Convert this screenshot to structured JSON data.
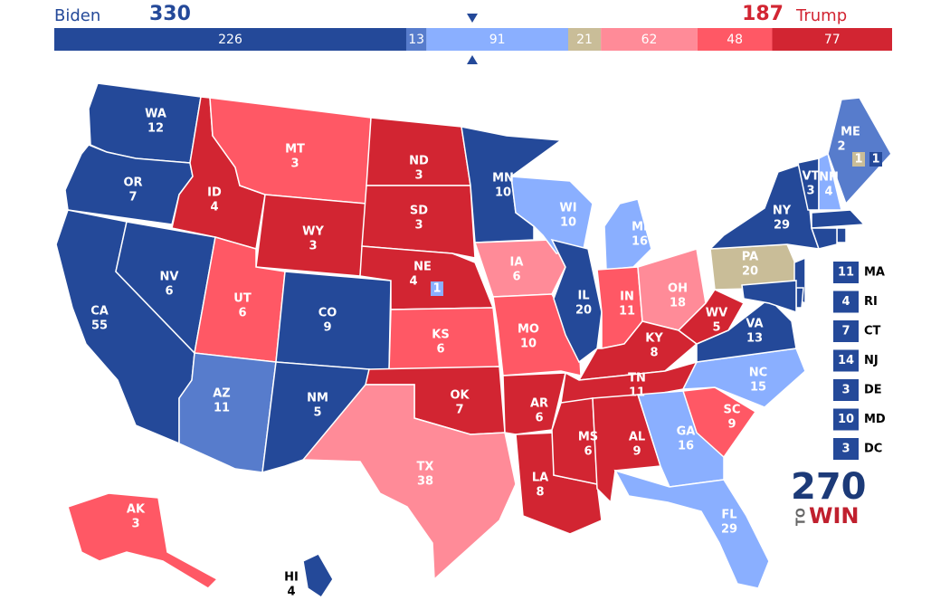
{
  "header": {
    "left_name": "Biden",
    "left_total": 330,
    "right_total": 187,
    "right_name": "Trump"
  },
  "bar": {
    "segments": [
      {
        "value": 226,
        "rating": "safe-d"
      },
      {
        "value": 13,
        "rating": "likely-d"
      },
      {
        "value": 91,
        "rating": "lean-d"
      },
      {
        "value": 21,
        "rating": "tossup"
      },
      {
        "value": 62,
        "rating": "lean-r"
      },
      {
        "value": 48,
        "rating": "likely-r"
      },
      {
        "value": 77,
        "rating": "safe-r"
      }
    ]
  },
  "ratings": {
    "safe-d": "#244999",
    "likely-d": "#577ccc",
    "lean-d": "#8aafff",
    "tossup": "#c9bd98",
    "lean-r": "#ff8b98",
    "likely-r": "#ff5865",
    "safe-r": "#d22532"
  },
  "states": [
    {
      "abbr": "WA",
      "ev": 12,
      "rating": "safe-d"
    },
    {
      "abbr": "OR",
      "ev": 7,
      "rating": "safe-d"
    },
    {
      "abbr": "CA",
      "ev": 55,
      "rating": "safe-d"
    },
    {
      "abbr": "NV",
      "ev": 6,
      "rating": "safe-d"
    },
    {
      "abbr": "ID",
      "ev": 4,
      "rating": "safe-r"
    },
    {
      "abbr": "MT",
      "ev": 3,
      "rating": "likely-r"
    },
    {
      "abbr": "WY",
      "ev": 3,
      "rating": "safe-r"
    },
    {
      "abbr": "UT",
      "ev": 6,
      "rating": "likely-r"
    },
    {
      "abbr": "AZ",
      "ev": 11,
      "rating": "likely-d"
    },
    {
      "abbr": "CO",
      "ev": 9,
      "rating": "safe-d"
    },
    {
      "abbr": "NM",
      "ev": 5,
      "rating": "safe-d"
    },
    {
      "abbr": "ND",
      "ev": 3,
      "rating": "safe-r"
    },
    {
      "abbr": "SD",
      "ev": 3,
      "rating": "safe-r"
    },
    {
      "abbr": "NE",
      "ev": 4,
      "rating": "safe-r"
    },
    {
      "abbr": "KS",
      "ev": 6,
      "rating": "likely-r"
    },
    {
      "abbr": "OK",
      "ev": 7,
      "rating": "safe-r"
    },
    {
      "abbr": "TX",
      "ev": 38,
      "rating": "lean-r"
    },
    {
      "abbr": "MN",
      "ev": 10,
      "rating": "safe-d"
    },
    {
      "abbr": "IA",
      "ev": 6,
      "rating": "lean-r"
    },
    {
      "abbr": "MO",
      "ev": 10,
      "rating": "likely-r"
    },
    {
      "abbr": "AR",
      "ev": 6,
      "rating": "safe-r"
    },
    {
      "abbr": "LA",
      "ev": 8,
      "rating": "safe-r"
    },
    {
      "abbr": "WI",
      "ev": 10,
      "rating": "lean-d"
    },
    {
      "abbr": "IL",
      "ev": 20,
      "rating": "safe-d"
    },
    {
      "abbr": "MI",
      "ev": 16,
      "rating": "lean-d"
    },
    {
      "abbr": "IN",
      "ev": 11,
      "rating": "likely-r"
    },
    {
      "abbr": "OH",
      "ev": 18,
      "rating": "lean-r"
    },
    {
      "abbr": "KY",
      "ev": 8,
      "rating": "safe-r"
    },
    {
      "abbr": "TN",
      "ev": 11,
      "rating": "safe-r"
    },
    {
      "abbr": "MS",
      "ev": 6,
      "rating": "safe-r"
    },
    {
      "abbr": "AL",
      "ev": 9,
      "rating": "safe-r"
    },
    {
      "abbr": "GA",
      "ev": 16,
      "rating": "lean-d"
    },
    {
      "abbr": "FL",
      "ev": 29,
      "rating": "lean-d"
    },
    {
      "abbr": "SC",
      "ev": 9,
      "rating": "likely-r"
    },
    {
      "abbr": "NC",
      "ev": 15,
      "rating": "lean-d"
    },
    {
      "abbr": "VA",
      "ev": 13,
      "rating": "safe-d"
    },
    {
      "abbr": "WV",
      "ev": 5,
      "rating": "safe-r"
    },
    {
      "abbr": "PA",
      "ev": 20,
      "rating": "tossup"
    },
    {
      "abbr": "NY",
      "ev": 29,
      "rating": "safe-d"
    },
    {
      "abbr": "VT",
      "ev": 3,
      "rating": "safe-d"
    },
    {
      "abbr": "NH",
      "ev": 4,
      "rating": "lean-d"
    },
    {
      "abbr": "ME",
      "ev": 2,
      "rating": "likely-d"
    },
    {
      "abbr": "AK",
      "ev": 3,
      "rating": "likely-r"
    },
    {
      "abbr": "HI",
      "ev": 4,
      "rating": "safe-d"
    }
  ],
  "districts": [
    {
      "state": "NE",
      "ev": 1,
      "rating": "lean-d"
    },
    {
      "state": "ME",
      "ev": 1,
      "rating": "tossup"
    },
    {
      "state": "ME",
      "ev": 1,
      "rating": "safe-d"
    }
  ],
  "small_states": [
    {
      "abbr": "MA",
      "ev": 11,
      "rating": "safe-d"
    },
    {
      "abbr": "RI",
      "ev": 4,
      "rating": "safe-d"
    },
    {
      "abbr": "CT",
      "ev": 7,
      "rating": "safe-d"
    },
    {
      "abbr": "NJ",
      "ev": 14,
      "rating": "safe-d"
    },
    {
      "abbr": "DE",
      "ev": 3,
      "rating": "safe-d"
    },
    {
      "abbr": "MD",
      "ev": 10,
      "rating": "safe-d"
    },
    {
      "abbr": "DC",
      "ev": 3,
      "rating": "safe-d"
    }
  ],
  "logo": {
    "number": "270",
    "to": "TO",
    "win": "WIN"
  }
}
